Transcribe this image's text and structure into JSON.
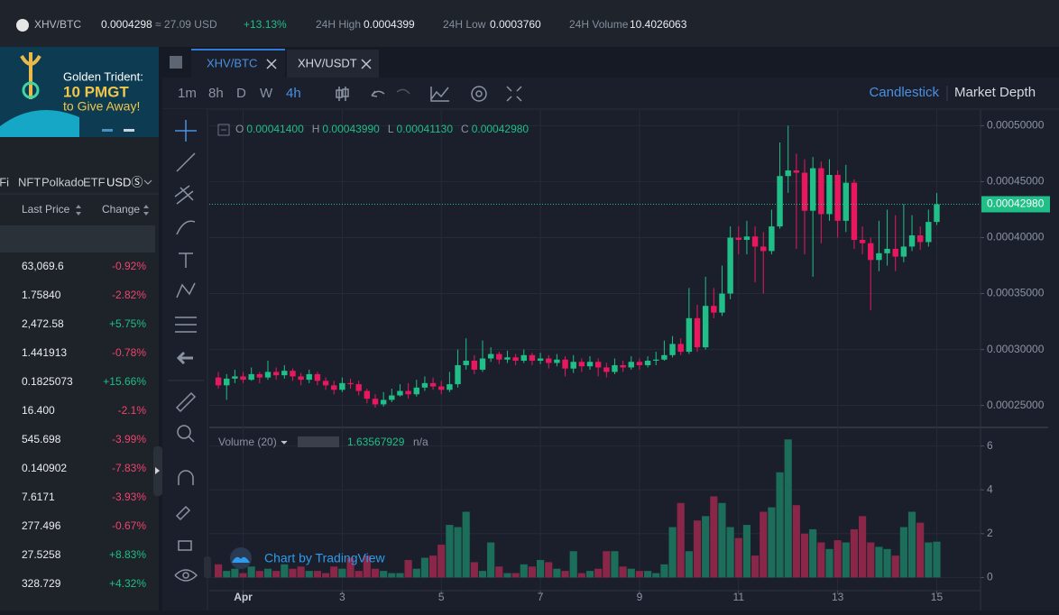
{
  "ticker": {
    "pair": "XHV/BTC",
    "price": "0.0004298",
    "usd": "≈ 27.09 USD",
    "change": "+13.13%",
    "high_label": "24H High",
    "high": "0.0004399",
    "low_label": "24H Low",
    "low": "0.0003760",
    "volume_label": "24H Volume",
    "volume": "10.4026063"
  },
  "banner": {
    "line1": "Golden Trident:",
    "line2": "10 PMGT",
    "line3": "to Give Away!"
  },
  "market_tabs": [
    "eFi",
    "NFT",
    "Polkado",
    "ETF",
    "USDⓈ"
  ],
  "market_columns": [
    "Last Price",
    "Change"
  ],
  "market_rows": [
    [
      "63,069.6",
      "-0.92%"
    ],
    [
      "1.75840",
      "-2.82%"
    ],
    [
      "2,472.58",
      "+5.75%"
    ],
    [
      "1.441913",
      "-0.78%"
    ],
    [
      "0.1825073",
      "+15.66%"
    ],
    [
      "16.400",
      "-2.1%"
    ],
    [
      "545.698",
      "-3.99%"
    ],
    [
      "0.140902",
      "-7.83%"
    ],
    [
      "7.6171",
      "-3.93%"
    ],
    [
      "277.496",
      "-0.67%"
    ],
    [
      "27.5258",
      "+8.83%"
    ],
    [
      "328.729",
      "+4.32%"
    ]
  ],
  "chart_tabs": [
    "XHV/BTC",
    "XHV/USDT"
  ],
  "intervals": [
    "1m",
    "8h",
    "D",
    "W",
    "4h"
  ],
  "views": [
    "Candlestick",
    "Market Depth"
  ],
  "chart_data": {
    "type": "candlestick",
    "legend": [
      {
        "key": "O",
        "text": "0.00041400"
      },
      {
        "key": "H",
        "text": "0.00043990"
      },
      {
        "key": "L",
        "text": "0.00041130"
      },
      {
        "key": "C",
        "text": "0.00042980"
      }
    ],
    "volume_label": "Volume (20)",
    "volume_text": "1.63567929",
    "volume_na": "n/a",
    "watermark": "Chart by TradingView",
    "up_color": "#1fbf87",
    "down_color": "#e8185e",
    "volume_up_color": "#1c6e5a",
    "volume_down_color": "#8a2648",
    "open": [
      0.000275,
      0.000268,
      0.000274,
      0.000276,
      0.000273,
      0.000278,
      0.000275,
      0.00028,
      0.000277,
      0.000281,
      0.000276,
      0.000273,
      0.000278,
      0.000272,
      0.000268,
      0.000264,
      0.00027,
      0.000269,
      0.000263,
      0.000256,
      0.000251,
      0.000255,
      0.000259,
      0.000263,
      0.00026,
      0.000266,
      0.00027,
      0.000267,
      0.000264,
      0.000269,
      0.000286,
      0.00029,
      0.000282,
      0.000292,
      0.000296,
      0.000291,
      0.000293,
      0.00029,
      0.000295,
      0.00029,
      0.000292,
      0.000288,
      0.000291,
      0.000283,
      0.000289,
      0.000285,
      0.000289,
      0.000284,
      0.00028,
      0.000286,
      0.000284,
      0.000289,
      0.000286,
      0.00029,
      0.000291,
      0.000295,
      0.000305,
      0.000298,
      0.000328,
      0.000302,
      0.000339,
      0.000333,
      0.00035,
      0.0004,
      0.000398,
      0.000401,
      0.000392,
      0.000388,
      0.00041,
      0.000455,
      0.00046,
      0.000458,
      0.000424,
      0.000462,
      0.000421,
      0.000456,
      0.000415,
      0.000449,
      0.000398,
      0.000395,
      0.00038,
      0.000386,
      0.00039,
      0.000383,
      0.000392,
      0.000402,
      0.000396,
      0.000414
    ],
    "high": [
      0.00028,
      0.000278,
      0.000282,
      0.00028,
      0.000284,
      0.00028,
      0.00029,
      0.000284,
      0.000286,
      0.000283,
      0.000279,
      0.000282,
      0.00028,
      0.000275,
      0.000272,
      0.000275,
      0.000274,
      0.000272,
      0.000265,
      0.00026,
      0.000262,
      0.000265,
      0.000269,
      0.00027,
      0.000273,
      0.000276,
      0.000275,
      0.000272,
      0.00028,
      0.0003,
      0.00031,
      0.000295,
      0.000308,
      0.000302,
      0.000298,
      0.000299,
      0.000296,
      0.0003,
      0.000297,
      0.000297,
      0.000295,
      0.000296,
      0.000294,
      0.000295,
      0.000292,
      0.000294,
      0.000292,
      0.000288,
      0.000292,
      0.00029,
      0.000294,
      0.000292,
      0.000294,
      0.000298,
      0.000308,
      0.000312,
      0.00031,
      0.000355,
      0.00034,
      0.000365,
      0.000355,
      0.000375,
      0.00041,
      0.00041,
      0.000415,
      0.00041,
      0.000405,
      0.000425,
      0.000485,
      0.0005,
      0.000475,
      0.00047,
      0.000472,
      0.000468,
      0.00047,
      0.00046,
      0.000465,
      0.000452,
      0.00041,
      0.0004,
      0.000415,
      0.000425,
      0.00042,
      0.00043,
      0.00042,
      0.00041,
      0.000425,
      0.0004399
    ],
    "low": [
      0.000265,
      0.000255,
      0.00027,
      0.00027,
      0.000272,
      0.00027,
      0.000273,
      0.000273,
      0.000274,
      0.000272,
      0.000268,
      0.00027,
      0.000268,
      0.000264,
      0.00026,
      0.000262,
      0.000265,
      0.000259,
      0.000252,
      0.000248,
      0.000249,
      0.000253,
      0.000258,
      0.000256,
      0.000258,
      0.000263,
      0.000264,
      0.00026,
      0.000262,
      0.000266,
      0.000282,
      0.000278,
      0.00028,
      0.000289,
      0.000287,
      0.000288,
      0.000286,
      0.000288,
      0.000286,
      0.000287,
      0.000283,
      0.000285,
      0.000276,
      0.000279,
      0.00028,
      0.000282,
      0.000276,
      0.000275,
      0.000278,
      0.00028,
      0.000282,
      0.000282,
      0.000284,
      0.000286,
      0.00029,
      0.000293,
      0.000295,
      0.000296,
      0.000298,
      0.0003,
      0.000328,
      0.00033,
      0.000345,
      0.000385,
      0.000385,
      0.00036,
      0.00035,
      0.000385,
      0.000408,
      0.00044,
      0.00039,
      0.000385,
      0.000365,
      0.000395,
      0.000415,
      0.0004,
      0.000405,
      0.00039,
      0.000385,
      0.000335,
      0.00037,
      0.000375,
      0.00037,
      0.000378,
      0.000388,
      0.000389,
      0.000392,
      0.0004113
    ],
    "close": [
      0.000268,
      0.000274,
      0.000276,
      0.000273,
      0.000278,
      0.000275,
      0.00028,
      0.000277,
      0.000281,
      0.000276,
      0.000273,
      0.000278,
      0.000272,
      0.000268,
      0.000264,
      0.00027,
      0.000269,
      0.000263,
      0.000256,
      0.000251,
      0.000255,
      0.000259,
      0.000263,
      0.00026,
      0.000266,
      0.00027,
      0.000267,
      0.000264,
      0.000269,
      0.000286,
      0.00029,
      0.000282,
      0.000292,
      0.000296,
      0.000291,
      0.000293,
      0.00029,
      0.000295,
      0.00029,
      0.000292,
      0.000288,
      0.000291,
      0.000283,
      0.000289,
      0.000285,
      0.000289,
      0.000284,
      0.00028,
      0.000286,
      0.000284,
      0.000289,
      0.000286,
      0.00029,
      0.000291,
      0.000295,
      0.000305,
      0.000298,
      0.000328,
      0.000302,
      0.000339,
      0.000333,
      0.00035,
      0.0004,
      0.000398,
      0.000401,
      0.000392,
      0.000388,
      0.00041,
      0.000455,
      0.00046,
      0.000458,
      0.000424,
      0.000462,
      0.000421,
      0.000456,
      0.000415,
      0.000449,
      0.000398,
      0.000395,
      0.00038,
      0.000386,
      0.00039,
      0.000383,
      0.000392,
      0.000402,
      0.000396,
      0.000414,
      0.0004298
    ],
    "volume": [
      0.6,
      0.3,
      0.4,
      0.2,
      0.5,
      0.3,
      0.4,
      0.3,
      0.6,
      0.4,
      0.5,
      0.3,
      0.3,
      0.2,
      0.5,
      0.4,
      0.9,
      0.3,
      1.0,
      0.4,
      0.3,
      0.2,
      0.2,
      0.8,
      0.4,
      0.9,
      1.0,
      1.5,
      2.4,
      2.3,
      3.0,
      0.7,
      0.3,
      1.6,
      0.5,
      0.2,
      0.2,
      0.6,
      0.5,
      0.8,
      0.7,
      0.4,
      0.3,
      1.2,
      0.2,
      0.3,
      0.4,
      1.2,
      1.2,
      0.5,
      0.4,
      0.3,
      0.3,
      0.2,
      0.6,
      2.3,
      3.4,
      1.2,
      2.6,
      2.8,
      3.7,
      3.4,
      2.3,
      1.8,
      2.4,
      1.0,
      3.0,
      3.2,
      4.8,
      6.3,
      3.3,
      2.0,
      2.2,
      1.6,
      1.3,
      1.7,
      1.6,
      2.2,
      2.8,
      1.6,
      1.4,
      1.3,
      1.0,
      2.3,
      3.0,
      2.5,
      1.6,
      1.63567929
    ],
    "xlim": [
      -1.1,
      92.3
    ],
    "xticks": [
      {
        "value": 3,
        "label": "Apr"
      },
      {
        "value": 15,
        "label": "3"
      },
      {
        "value": 27,
        "label": "5"
      },
      {
        "value": 39,
        "label": "7"
      },
      {
        "value": 51,
        "label": "9"
      },
      {
        "value": 63,
        "label": "11"
      },
      {
        "value": 75,
        "label": "13"
      },
      {
        "value": 87,
        "label": "15"
      }
    ],
    "ylim": [
      0.000232,
      0.000514
    ],
    "yticks": [
      {
        "value": 0.00025,
        "label": "0.00025000"
      },
      {
        "value": 0.0003,
        "label": "0.00030000"
      },
      {
        "value": 0.00035,
        "label": "0.00035000"
      },
      {
        "value": 0.0004,
        "label": "0.00040000"
      },
      {
        "value": 0.00045,
        "label": "0.00045000"
      },
      {
        "value": 0.0005,
        "label": "0.00050000"
      }
    ],
    "last_price": {
      "value": 0.0004298,
      "label": "0.00042980"
    },
    "volume_ylim": [
      -0.6,
      6.6
    ],
    "volume_ticks": [
      0,
      2,
      4,
      6
    ],
    "grid": true
  }
}
